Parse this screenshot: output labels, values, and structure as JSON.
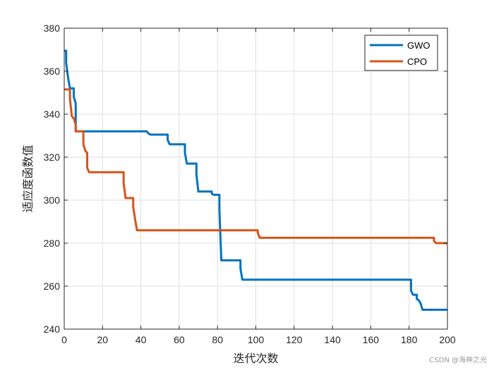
{
  "chart_data": {
    "type": "line",
    "title": "",
    "xlabel": "迭代次数",
    "ylabel": "适应度函数值",
    "xlim": [
      0,
      200
    ],
    "ylim": [
      240,
      380
    ],
    "xticks": [
      0,
      20,
      40,
      60,
      80,
      100,
      120,
      140,
      160,
      180,
      200
    ],
    "yticks": [
      240,
      260,
      280,
      300,
      320,
      340,
      360,
      380
    ],
    "grid": true,
    "legend_position": "top-right",
    "series": [
      {
        "name": "GWO",
        "color": "#0072BD",
        "points": [
          [
            0,
            369.5
          ],
          [
            1,
            369.5
          ],
          [
            1,
            364
          ],
          [
            2,
            357
          ],
          [
            3,
            352
          ],
          [
            5,
            352
          ],
          [
            5,
            348
          ],
          [
            6,
            345
          ],
          [
            6,
            332
          ],
          [
            43,
            332
          ],
          [
            44,
            331
          ],
          [
            45,
            330.5
          ],
          [
            54,
            330.5
          ],
          [
            54,
            328
          ],
          [
            55,
            326
          ],
          [
            63,
            326
          ],
          [
            63,
            322
          ],
          [
            64,
            317
          ],
          [
            69,
            317
          ],
          [
            69,
            312
          ],
          [
            70,
            304
          ],
          [
            77,
            304
          ],
          [
            77,
            303
          ],
          [
            78,
            302.5
          ],
          [
            81,
            302.5
          ],
          [
            81,
            295
          ],
          [
            82,
            272
          ],
          [
            92,
            272
          ],
          [
            92,
            268
          ],
          [
            93,
            263
          ],
          [
            181,
            263
          ],
          [
            181,
            258
          ],
          [
            182,
            256
          ],
          [
            184,
            256
          ],
          [
            184,
            254
          ],
          [
            185,
            253.5
          ],
          [
            186,
            252
          ],
          [
            187,
            249
          ],
          [
            200,
            249
          ]
        ]
      },
      {
        "name": "CPO",
        "color": "#D95319",
        "points": [
          [
            0,
            351.5
          ],
          [
            3,
            351.5
          ],
          [
            3,
            347
          ],
          [
            4,
            339
          ],
          [
            5,
            338
          ],
          [
            6,
            335
          ],
          [
            6,
            332
          ],
          [
            10,
            332
          ],
          [
            10,
            326
          ],
          [
            11,
            323
          ],
          [
            12,
            322
          ],
          [
            12,
            315
          ],
          [
            13,
            313
          ],
          [
            31,
            313
          ],
          [
            31,
            308
          ],
          [
            32,
            301
          ],
          [
            36,
            301
          ],
          [
            36,
            297
          ],
          [
            37,
            291
          ],
          [
            38,
            286
          ],
          [
            101,
            286
          ],
          [
            101,
            285
          ],
          [
            102,
            282.5
          ],
          [
            193,
            282.5
          ],
          [
            193,
            281
          ],
          [
            194,
            280
          ],
          [
            200,
            280
          ]
        ]
      }
    ]
  },
  "watermark": "CSDN @海神之光"
}
